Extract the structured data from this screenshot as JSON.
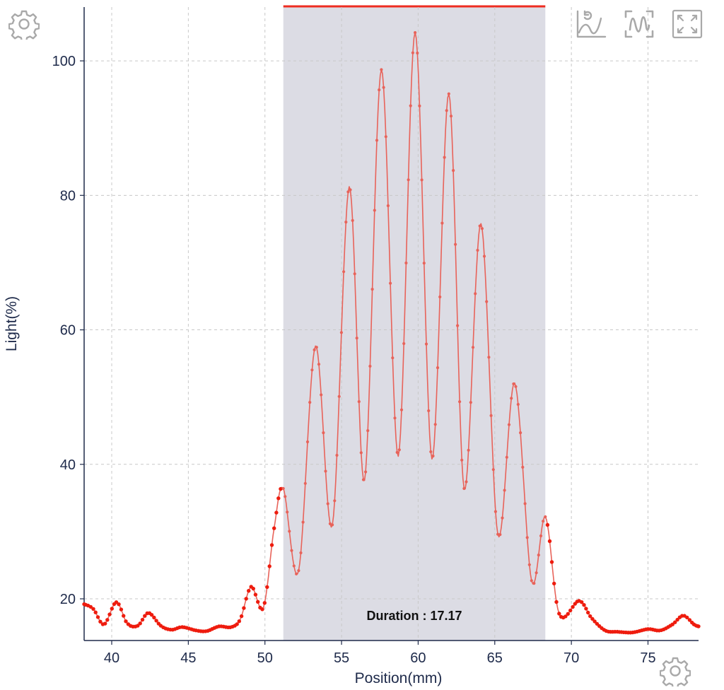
{
  "toolbar": {
    "settings_top_icon": "gear-icon",
    "curve_icon": "curve-refresh-icon",
    "wave_select_icon": "wave-select-icon",
    "fullscreen_icon": "expand-icon",
    "settings_bottom_icon": "gear-icon"
  },
  "colors": {
    "line": "#e8635a",
    "line_outside": "#ee1c0e",
    "selection_fill": "#dcdce4",
    "selection_bar": "#ee2c20",
    "grid": "#c8c8c8",
    "axis": "#1e2a4a",
    "icon": "#a9a9a9"
  },
  "annotation": {
    "duration_text": "Duration : 17.17"
  },
  "chart_data": {
    "type": "line",
    "title": "",
    "xlabel": "Position(mm)",
    "ylabel": "Light(%)",
    "xlim": [
      38.2,
      78.3
    ],
    "ylim": [
      13.8,
      108
    ],
    "grid": true,
    "legend": "none",
    "x_ticks": [
      40,
      45,
      50,
      55,
      60,
      65,
      70,
      75
    ],
    "x_tick_labels": [
      "40",
      "45",
      "50",
      "55",
      "60",
      "65",
      "70",
      "75"
    ],
    "y_ticks": [
      20,
      40,
      60,
      80,
      100
    ],
    "y_tick_labels": [
      "20",
      "40",
      "60",
      "80",
      "100"
    ],
    "selection": {
      "x_start": 51.2,
      "x_end": 68.3
    },
    "series": [
      {
        "x": [
          38.2,
          38.8,
          39.5,
          40.3,
          41.0,
          41.7,
          42.4,
          43.2,
          43.9,
          44.6,
          45.5,
          46.2,
          47.0,
          47.8,
          48.4,
          49.1,
          49.9,
          50.6,
          51.2,
          52.2,
          53.3,
          54.4,
          55.5,
          56.5,
          57.6,
          58.7,
          59.8,
          60.9,
          62.0,
          63.0,
          64.1,
          65.2,
          66.3,
          67.4,
          68.3,
          69.2,
          70.5,
          71.3,
          72.2,
          73.0,
          74.0,
          75.0,
          75.8,
          76.6,
          77.3,
          78.0,
          78.3
        ],
        "y": [
          19.2,
          18.5,
          16.2,
          19.5,
          16.4,
          16.0,
          17.9,
          16.0,
          15.4,
          15.8,
          15.3,
          15.2,
          15.9,
          15.8,
          17.0,
          21.8,
          18.7,
          30.5,
          36.4,
          24.2,
          57.6,
          31.0,
          81.3,
          37.6,
          98.7,
          41.2,
          104.2,
          40.8,
          95.1,
          36.4,
          75.8,
          29.6,
          52.1,
          22.7,
          32.2,
          17.8,
          19.7,
          17.2,
          15.3,
          15.1,
          15.0,
          15.5,
          15.3,
          16.2,
          17.5,
          16.2,
          15.9
        ]
      }
    ]
  }
}
